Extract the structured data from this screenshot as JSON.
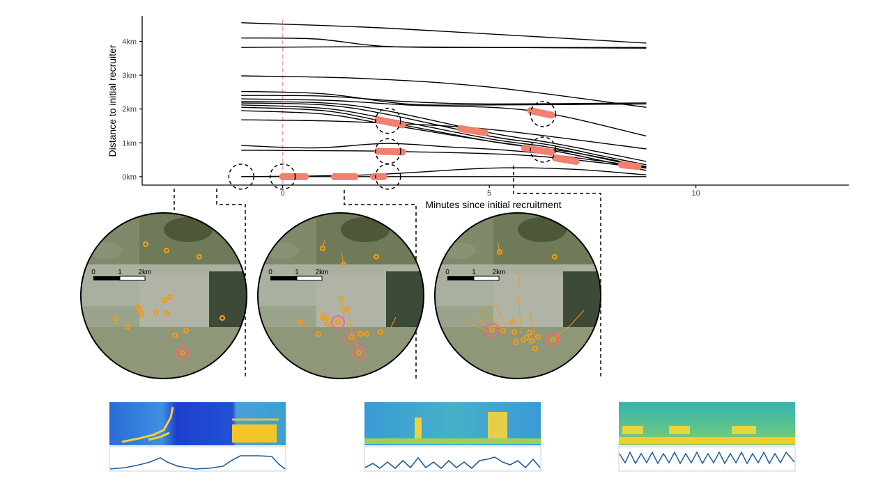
{
  "chart_data": {
    "type": "line",
    "xlabel": "Minutes since initial recruitment",
    "ylabel": "Distance to initial recruiter",
    "xlim": [
      -3.4,
      13.7
    ],
    "ylim": [
      -0.25,
      4.75
    ],
    "x_ticks": [
      {
        "value": 0,
        "label": "0"
      },
      {
        "value": 5,
        "label": "5"
      },
      {
        "value": 10,
        "label": "10"
      }
    ],
    "y_ticks": [
      {
        "value": 0,
        "label": "0km"
      },
      {
        "value": 1,
        "label": "1km"
      },
      {
        "value": 2,
        "label": "2km"
      },
      {
        "value": 3,
        "label": "3km"
      },
      {
        "value": 4,
        "label": "4km"
      }
    ],
    "grid": false,
    "reference_line": {
      "x": 0,
      "color": "#f4a09a",
      "style": "dashed"
    },
    "line_color": "#000000",
    "highlight_color": "#f08070",
    "series": [
      {
        "x": [
          -1,
          2,
          5,
          8.8
        ],
        "y": [
          4.55,
          4.42,
          4.22,
          3.95
        ]
      },
      {
        "x": [
          -1,
          0.8,
          2.5,
          5,
          8.8
        ],
        "y": [
          4.1,
          4.07,
          3.85,
          3.82,
          3.82
        ]
      },
      {
        "x": [
          -1,
          2,
          5,
          8.8
        ],
        "y": [
          3.82,
          3.84,
          3.82,
          3.8
        ]
      },
      {
        "x": [
          -1,
          2,
          5,
          8.8
        ],
        "y": [
          2.98,
          2.9,
          2.65,
          2.05
        ]
      },
      {
        "x": [
          -1,
          1,
          3,
          5,
          8.8
        ],
        "y": [
          2.52,
          2.45,
          2.15,
          2.12,
          2.15
        ]
      },
      {
        "x": [
          -1,
          1,
          3,
          5,
          8.8
        ],
        "y": [
          2.4,
          2.38,
          2.22,
          2.15,
          2.18
        ]
      },
      {
        "x": [
          -1,
          1.2,
          3,
          6,
          8.8
        ],
        "y": [
          2.3,
          2.25,
          2.12,
          1.95,
          1.2
        ]
      },
      {
        "x": [
          -1,
          1,
          2.5,
          5,
          6.4,
          7.7,
          8.8
        ],
        "y": [
          2.22,
          2.18,
          1.95,
          1.3,
          1.02,
          0.72,
          0.45
        ]
      },
      {
        "x": [
          -1,
          1,
          2.5,
          5,
          6.4,
          7.7,
          8.8
        ],
        "y": [
          2.18,
          2.12,
          1.85,
          1.2,
          0.95,
          0.62,
          0.35
        ]
      },
      {
        "x": [
          -1,
          1,
          2.5,
          5,
          6.4,
          7.7,
          8.8
        ],
        "y": [
          2.12,
          2.02,
          1.72,
          1.12,
          0.88,
          0.55,
          0.25
        ]
      },
      {
        "x": [
          -1,
          1,
          2.5,
          5,
          6.4,
          7.7,
          8.8
        ],
        "y": [
          2.05,
          1.95,
          1.62,
          1.05,
          0.8,
          0.48,
          0.18
        ]
      },
      {
        "x": [
          -1,
          1,
          2.5,
          5,
          7,
          8.8
        ],
        "y": [
          1.95,
          1.85,
          1.55,
          1.05,
          0.72,
          0.3
        ]
      },
      {
        "x": [
          -1,
          1,
          2.5,
          5,
          8.8
        ],
        "y": [
          1.68,
          1.65,
          1.58,
          1.4,
          0.82
        ]
      },
      {
        "x": [
          -1,
          0.8,
          2.5,
          4,
          6,
          8.8
        ],
        "y": [
          0.92,
          0.85,
          0.98,
          0.88,
          0.72,
          0.28
        ]
      },
      {
        "x": [
          -1,
          2,
          3,
          6,
          8.8
        ],
        "y": [
          0.78,
          0.76,
          0.74,
          0.62,
          0.25
        ]
      },
      {
        "x": [
          -1,
          2,
          5,
          7,
          8.8
        ],
        "y": [
          0.0,
          0.05,
          0.25,
          0.22,
          0.05
        ]
      },
      {
        "x": [
          -1,
          8.8
        ],
        "y": [
          0.0,
          0.0
        ]
      }
    ],
    "highlights": [
      {
        "x0": 0,
        "x1": 0.55,
        "y0": 0.0,
        "y1": 0.0
      },
      {
        "x0": 1.25,
        "x1": 1.75,
        "y0": 0.0,
        "y1": 0.0
      },
      {
        "x0": 2.2,
        "x1": 2.45,
        "y0": 0.0,
        "y1": 0.0
      },
      {
        "x0": 2.3,
        "x1": 2.9,
        "y0": 0.75,
        "y1": 0.73
      },
      {
        "x0": 2.3,
        "x1": 2.9,
        "y0": 1.68,
        "y1": 1.53
      },
      {
        "x0": 4.3,
        "x1": 4.9,
        "y0": 1.42,
        "y1": 1.3
      },
      {
        "x0": 6.0,
        "x1": 6.5,
        "y0": 1.95,
        "y1": 1.82
      },
      {
        "x0": 5.85,
        "x1": 6.5,
        "y0": 0.85,
        "y1": 0.72
      },
      {
        "x0": 6.6,
        "x1": 7.1,
        "y0": 0.55,
        "y1": 0.45
      },
      {
        "x0": 8.2,
        "x1": 8.6,
        "y0": 0.35,
        "y1": 0.3
      }
    ],
    "circles": [
      {
        "x": -1,
        "y": 0.0
      },
      {
        "x": 0,
        "y": 0.0
      },
      {
        "x": 2.55,
        "y": 0.0
      },
      {
        "x": 2.55,
        "y": 0.75
      },
      {
        "x": 2.55,
        "y": 1.65
      },
      {
        "x": 6.3,
        "y": 0.8
      },
      {
        "x": 6.3,
        "y": 1.85
      }
    ]
  },
  "maps": [
    {
      "scale_labels": [
        "0",
        "1",
        "2km"
      ]
    },
    {
      "scale_labels": [
        "0",
        "1",
        "2km"
      ]
    },
    {
      "scale_labels": [
        "0",
        "1",
        "2km"
      ]
    }
  ]
}
